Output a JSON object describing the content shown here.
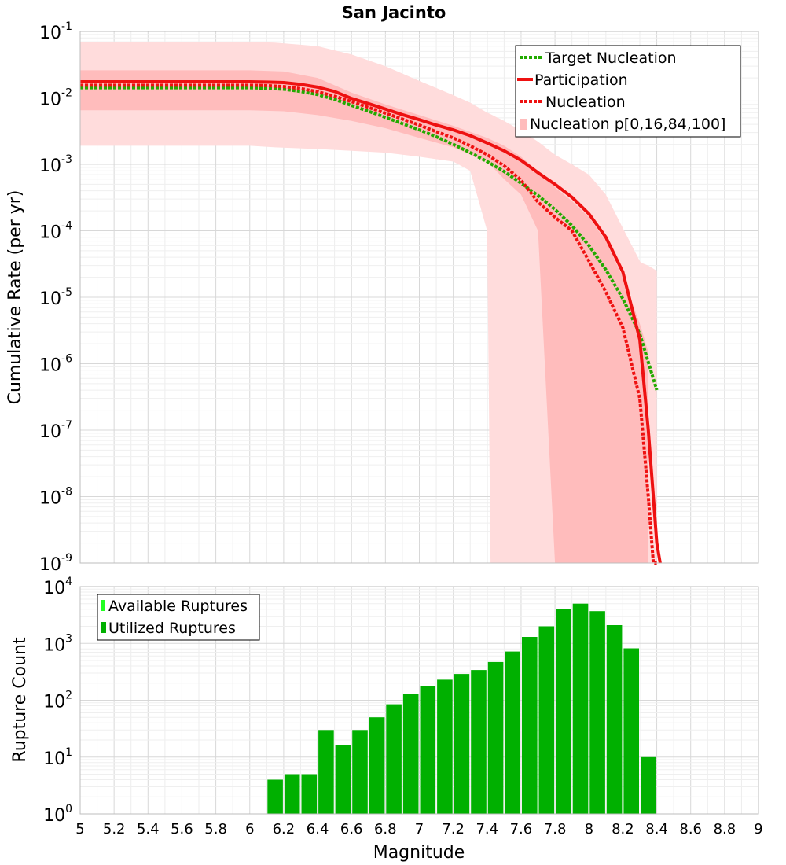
{
  "chart_data": [
    {
      "type": "line",
      "title": "San Jacinto",
      "ylabel": "Cumulative Rate (per yr)",
      "xlim": [
        5,
        9
      ],
      "y_log_exponent_range": [
        -9,
        -1
      ],
      "yscale": "log",
      "y_tick_labels": [
        {
          "base": "10",
          "exp": "-1"
        },
        {
          "base": "10",
          "exp": "-2"
        },
        {
          "base": "10",
          "exp": "-3"
        },
        {
          "base": "10",
          "exp": "-4"
        },
        {
          "base": "10",
          "exp": "-5"
        },
        {
          "base": "10",
          "exp": "-6"
        },
        {
          "base": "10",
          "exp": "-7"
        },
        {
          "base": "10",
          "exp": "-8"
        },
        {
          "base": "10",
          "exp": "-9"
        }
      ],
      "grid": true,
      "legend_position": "top-right",
      "legend": [
        "Target Nucleation",
        "Participation",
        "Nucleation",
        "Nucleation p[0,16,84,100]"
      ],
      "bands": [
        {
          "name": "Nucleation p[0,16,84,100]",
          "level": "p0-p100",
          "color": "#ffdcdc",
          "x": [
            5,
            5.6,
            6,
            6.15,
            6.4,
            6.6,
            6.8,
            7.0,
            7.2,
            7.3,
            7.4,
            7.42,
            7.45,
            7.5,
            7.6,
            7.7,
            7.8,
            7.9,
            8.0,
            8.1,
            8.2,
            8.3,
            8.31,
            8.35,
            8.4
          ],
          "upper": [
            0.07,
            0.07,
            0.07,
            0.068,
            0.06,
            0.045,
            0.03,
            0.018,
            0.011,
            0.0085,
            0.006,
            0.0057,
            0.0052,
            0.0045,
            0.0032,
            0.0022,
            0.0014,
            0.001,
            0.0007,
            0.00035,
            0.00011,
            3.5e-05,
            3.3e-05,
            3e-05,
            2.5e-05
          ],
          "lower": [
            0.0019,
            0.0019,
            0.0019,
            0.0018,
            0.0017,
            0.0016,
            0.0015,
            0.0013,
            0.0011,
            0.0008,
            0.0001,
            1e-09,
            1e-09,
            1e-09,
            1e-09,
            1e-09,
            1e-09,
            1e-09,
            1e-09,
            1e-09,
            1e-09,
            1e-09,
            1e-09,
            1e-09,
            1e-09
          ]
        },
        {
          "name": "Nucleation p16-p84",
          "level": "p16-p84",
          "color": "#ffbcbc",
          "x": [
            5,
            6,
            6.2,
            6.4,
            6.6,
            6.8,
            7.0,
            7.2,
            7.4,
            7.5,
            7.6,
            7.7,
            7.8,
            7.9,
            8.0,
            8.1,
            8.2,
            8.3,
            8.35
          ],
          "upper": [
            0.026,
            0.026,
            0.025,
            0.02,
            0.012,
            0.008,
            0.0055,
            0.0038,
            0.0025,
            0.0019,
            0.0013,
            0.0008,
            0.00045,
            0.00028,
            0.00016,
            7e-05,
            2e-05,
            4e-06,
            1.5e-06
          ],
          "lower": [
            0.0065,
            0.0065,
            0.0063,
            0.0055,
            0.0045,
            0.0035,
            0.0025,
            0.0018,
            0.0011,
            0.0006,
            0.00035,
            0.0001,
            1e-09,
            1e-09,
            1e-09,
            1e-09,
            1e-09,
            1e-09,
            1e-09
          ]
        }
      ],
      "series": [
        {
          "name": "Target Nucleation",
          "color": "#22aa00",
          "dash": "dotted",
          "x": [
            5,
            5.5,
            6,
            6.1,
            6.2,
            6.3,
            6.4,
            6.5,
            6.6,
            6.7,
            6.8,
            6.9,
            7.0,
            7.1,
            7.2,
            7.3,
            7.4,
            7.5,
            7.6,
            7.7,
            7.8,
            7.9,
            8.0,
            8.1,
            8.2,
            8.3,
            8.4
          ],
          "values": [
            0.0142,
            0.0142,
            0.0142,
            0.014,
            0.0135,
            0.0125,
            0.0112,
            0.0095,
            0.0077,
            0.0063,
            0.0051,
            0.0041,
            0.0033,
            0.0026,
            0.002,
            0.0015,
            0.0011,
            0.00078,
            0.00052,
            0.00034,
            0.00021,
            0.00012,
            6e-05,
            2.6e-05,
            9.5e-06,
            2.8e-06,
            4e-07
          ]
        },
        {
          "name": "Participation",
          "color": "#ee1111",
          "dash": "solid",
          "x": [
            5,
            5.5,
            6,
            6.1,
            6.2,
            6.3,
            6.4,
            6.5,
            6.6,
            6.7,
            6.8,
            6.9,
            7.0,
            7.1,
            7.2,
            7.3,
            7.4,
            7.5,
            7.6,
            7.7,
            7.8,
            7.9,
            8.0,
            8.1,
            8.2,
            8.3,
            8.35,
            8.38,
            8.4,
            8.42
          ],
          "values": [
            0.0175,
            0.0175,
            0.0175,
            0.0173,
            0.017,
            0.016,
            0.0145,
            0.0125,
            0.0098,
            0.0082,
            0.0068,
            0.0056,
            0.0047,
            0.0039,
            0.0033,
            0.0027,
            0.0021,
            0.0016,
            0.00115,
            0.00075,
            0.0005,
            0.00032,
            0.00018,
            8e-05,
            2.4e-05,
            2.3e-06,
            1e-07,
            1e-08,
            2e-09,
            1e-09
          ]
        },
        {
          "name": "Nucleation",
          "color": "#ee1111",
          "dash": "dotted",
          "x": [
            5,
            5.5,
            6,
            6.1,
            6.2,
            6.3,
            6.4,
            6.5,
            6.6,
            6.7,
            6.8,
            6.9,
            7.0,
            7.1,
            7.2,
            7.3,
            7.4,
            7.5,
            7.6,
            7.7,
            7.8,
            7.9,
            8.0,
            8.1,
            8.2,
            8.3,
            8.35,
            8.38,
            8.4
          ],
          "values": [
            0.0155,
            0.0155,
            0.0155,
            0.0153,
            0.0148,
            0.0138,
            0.0124,
            0.0106,
            0.0088,
            0.0072,
            0.0059,
            0.0048,
            0.0039,
            0.0031,
            0.0025,
            0.0019,
            0.0014,
            0.00095,
            0.00058,
            0.00027,
            0.00016,
            0.0001,
            3.5e-05,
            1.2e-05,
            3.5e-06,
            3e-07,
            1e-08,
            1e-09,
            1e-09
          ]
        }
      ]
    },
    {
      "type": "bar",
      "xlabel": "Magnitude",
      "ylabel": "Rupture Count",
      "xlim": [
        5,
        9
      ],
      "y_log_exponent_range": [
        0,
        4
      ],
      "yscale": "log",
      "y_tick_labels": [
        {
          "base": "10",
          "exp": "4"
        },
        {
          "base": "10",
          "exp": "3"
        },
        {
          "base": "10",
          "exp": "2"
        },
        {
          "base": "10",
          "exp": "1"
        },
        {
          "base": "10",
          "exp": "0"
        }
      ],
      "x_tick_labels": [
        "5",
        "5.2",
        "5.4",
        "5.6",
        "5.8",
        "6",
        "6.2",
        "6.4",
        "6.6",
        "6.8",
        "7",
        "7.2",
        "7.4",
        "7.6",
        "7.8",
        "8",
        "8.2",
        "8.4",
        "8.6",
        "8.8",
        "9"
      ],
      "grid": true,
      "legend_position": "top-left",
      "legend": [
        "Available Ruptures",
        "Utilized Ruptures"
      ],
      "series": [
        {
          "name": "Utilized Ruptures",
          "color": "#00b000",
          "x": [
            6.15,
            6.25,
            6.35,
            6.45,
            6.55,
            6.65,
            6.75,
            6.85,
            6.95,
            7.05,
            7.15,
            7.25,
            7.35,
            7.45,
            7.55,
            7.65,
            7.75,
            7.85,
            7.95,
            8.05,
            8.15,
            8.25,
            8.35
          ],
          "values": [
            4,
            5,
            5,
            30,
            16,
            30,
            50,
            85,
            130,
            180,
            230,
            290,
            340,
            470,
            720,
            1300,
            2000,
            4000,
            5000,
            3700,
            2100,
            820,
            10
          ]
        }
      ]
    }
  ]
}
